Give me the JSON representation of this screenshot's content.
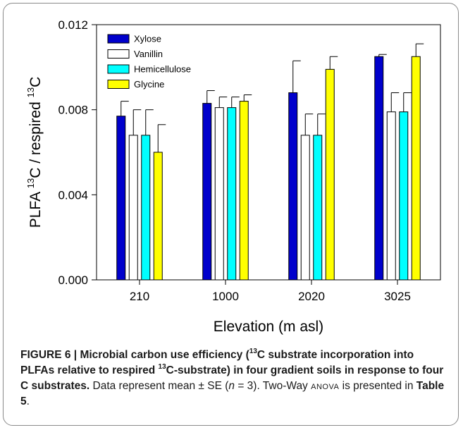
{
  "chart_data": {
    "type": "bar",
    "title": "",
    "xlabel": "Elevation (m asl)",
    "ylabel": {
      "parts": [
        "PLFA ",
        "13",
        "C / respired ",
        "13",
        "C"
      ]
    },
    "categories": [
      "210",
      "1000",
      "2020",
      "3025"
    ],
    "ylim": [
      0,
      0.012
    ],
    "yticks": [
      "0.000",
      "0.004",
      "0.008",
      "0.012"
    ],
    "ytick_values": [
      0,
      0.004,
      0.008,
      0.012
    ],
    "grid": false,
    "legend_position": "top-left",
    "series": [
      {
        "name": "Xylose",
        "color": "#0000cc",
        "values": [
          0.0077,
          0.0083,
          0.0088,
          0.0105
        ],
        "errors": [
          0.0007,
          0.0006,
          0.0015,
          0.0001
        ]
      },
      {
        "name": "Vanillin",
        "color": "#ffffff",
        "values": [
          0.0068,
          0.0081,
          0.0068,
          0.0079
        ],
        "errors": [
          0.0012,
          0.0005,
          0.001,
          0.0009
        ]
      },
      {
        "name": "Hemicellulose",
        "color": "#00ffff",
        "values": [
          0.0068,
          0.0081,
          0.0068,
          0.0079
        ],
        "errors": [
          0.0012,
          0.0005,
          0.001,
          0.0009
        ]
      },
      {
        "name": "Glycine",
        "color": "#ffff00",
        "values": [
          0.006,
          0.0084,
          0.0099,
          0.0105
        ],
        "errors": [
          0.0013,
          0.0003,
          0.0006,
          0.0006
        ]
      }
    ]
  },
  "caption": {
    "figure_label": "FIGURE 6 | ",
    "title_part1": "Microbial carbon use efficiency (",
    "sup1": "13",
    "title_part2": "C substrate incorporation into PLFAs relative to respired ",
    "sup2": "13",
    "title_part3": "C-substrate) in four gradient soils in response to four C substrates.",
    "body_part1": " Data represent mean ± SE (",
    "n_var": "n",
    "body_part2": " = 3). Two-Way ",
    "anova": "anova",
    "body_part3": " is presented in ",
    "table_ref": "Table 5",
    "body_part4": "."
  }
}
